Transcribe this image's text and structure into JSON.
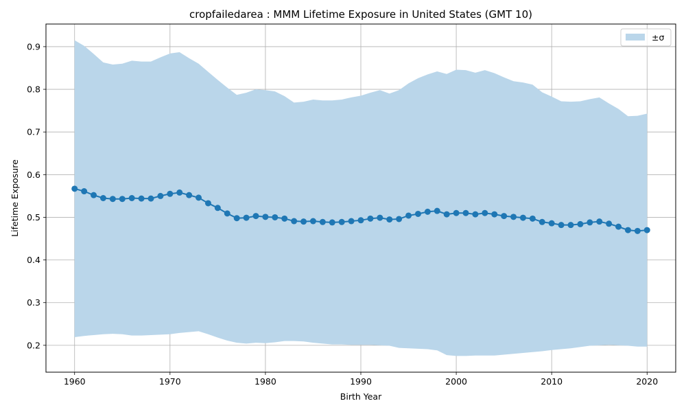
{
  "chart_data": {
    "type": "line",
    "title": "cropfailedarea : MMM Lifetime Exposure in United States (GMT 10)",
    "xlabel": "Birth Year",
    "ylabel": "Lifetime Exposure",
    "xlim": [
      1957,
      2023
    ],
    "ylim": [
      0.137,
      0.953
    ],
    "xticks": [
      1960,
      1970,
      1980,
      1990,
      2000,
      2010,
      2020
    ],
    "yticks": [
      0.2,
      0.3,
      0.4,
      0.5,
      0.6,
      0.7,
      0.8,
      0.9
    ],
    "grid": true,
    "legend_placement": "top-right",
    "colors": {
      "line": "#1f77b4",
      "band": "#bad6ea",
      "grid": "#b0b0b0"
    },
    "x": [
      1960,
      1961,
      1962,
      1963,
      1964,
      1965,
      1966,
      1967,
      1968,
      1969,
      1970,
      1971,
      1972,
      1973,
      1974,
      1975,
      1976,
      1977,
      1978,
      1979,
      1980,
      1981,
      1982,
      1983,
      1984,
      1985,
      1986,
      1987,
      1988,
      1989,
      1990,
      1991,
      1992,
      1993,
      1994,
      1995,
      1996,
      1997,
      1998,
      1999,
      2000,
      2001,
      2002,
      2003,
      2004,
      2005,
      2006,
      2007,
      2008,
      2009,
      2010,
      2011,
      2012,
      2013,
      2014,
      2015,
      2016,
      2017,
      2018,
      2019,
      2020
    ],
    "series": [
      {
        "name": "",
        "values": [
          0.567,
          0.561,
          0.552,
          0.545,
          0.543,
          0.543,
          0.545,
          0.544,
          0.544,
          0.55,
          0.555,
          0.558,
          0.552,
          0.546,
          0.533,
          0.522,
          0.509,
          0.498,
          0.499,
          0.503,
          0.501,
          0.5,
          0.497,
          0.491,
          0.49,
          0.491,
          0.489,
          0.488,
          0.489,
          0.491,
          0.493,
          0.497,
          0.499,
          0.495,
          0.496,
          0.504,
          0.508,
          0.513,
          0.515,
          0.507,
          0.51,
          0.51,
          0.507,
          0.51,
          0.507,
          0.503,
          0.501,
          0.499,
          0.497,
          0.489,
          0.486,
          0.482,
          0.482,
          0.484,
          0.488,
          0.49,
          0.485,
          0.478,
          0.47,
          0.468,
          0.47
        ],
        "upper": [
          0.915,
          0.902,
          0.883,
          0.863,
          0.858,
          0.86,
          0.867,
          0.865,
          0.865,
          0.875,
          0.884,
          0.887,
          0.873,
          0.86,
          0.841,
          0.822,
          0.804,
          0.787,
          0.792,
          0.8,
          0.798,
          0.795,
          0.784,
          0.769,
          0.771,
          0.776,
          0.774,
          0.774,
          0.776,
          0.781,
          0.785,
          0.792,
          0.798,
          0.79,
          0.798,
          0.814,
          0.826,
          0.835,
          0.842,
          0.836,
          0.846,
          0.845,
          0.839,
          0.845,
          0.838,
          0.828,
          0.819,
          0.816,
          0.811,
          0.793,
          0.783,
          0.772,
          0.771,
          0.772,
          0.777,
          0.781,
          0.767,
          0.754,
          0.737,
          0.738,
          0.743
        ],
        "lower": [
          0.219,
          0.222,
          0.224,
          0.226,
          0.227,
          0.226,
          0.223,
          0.223,
          0.224,
          0.225,
          0.226,
          0.229,
          0.231,
          0.233,
          0.226,
          0.218,
          0.211,
          0.206,
          0.204,
          0.206,
          0.205,
          0.207,
          0.21,
          0.21,
          0.209,
          0.206,
          0.204,
          0.202,
          0.202,
          0.201,
          0.201,
          0.201,
          0.2,
          0.199,
          0.194,
          0.193,
          0.192,
          0.191,
          0.188,
          0.177,
          0.175,
          0.175,
          0.176,
          0.176,
          0.176,
          0.178,
          0.18,
          0.182,
          0.184,
          0.186,
          0.189,
          0.191,
          0.193,
          0.196,
          0.199,
          0.2,
          0.201,
          0.2,
          0.199,
          0.197,
          0.197
        ]
      }
    ],
    "legend": [
      {
        "label": "±σ",
        "kind": "band"
      }
    ]
  }
}
